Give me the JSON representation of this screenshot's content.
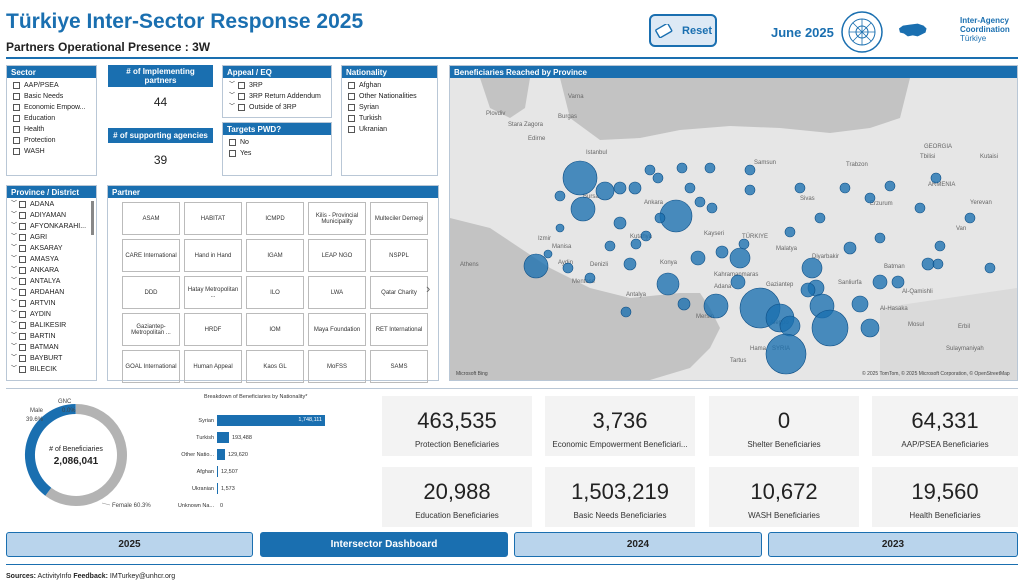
{
  "header": {
    "title": "Türkiye Inter-Sector Response 2025",
    "subtitle": "Partners Operational Presence : 3W",
    "reset_label": "Reset",
    "date": "June 2025",
    "iac_text": [
      "Inter-Agency",
      "Coordination",
      "Türkiye"
    ]
  },
  "sector": {
    "title": "Sector",
    "items": [
      "AAP/PSEA",
      "Basic Needs",
      "Economic Empow...",
      "Education",
      "Health",
      "Protection",
      "WASH"
    ]
  },
  "kpis": {
    "implementing_label": "# of Implementing partners",
    "implementing_value": "44",
    "supporting_label": "# of supporting agencies",
    "supporting_value": "39"
  },
  "appeal": {
    "title": "Appeal / EQ",
    "items": [
      "3RP",
      "3RP Return Addendum",
      "Outside of 3RP"
    ]
  },
  "pwd": {
    "title": "Targets PWD?",
    "items": [
      "No",
      "Yes"
    ]
  },
  "nationality": {
    "title": "Nationality",
    "items": [
      "Afghan",
      "Other Nationalities",
      "Syrian",
      "Turkish",
      "Ukranian"
    ]
  },
  "province": {
    "title": "Province / District",
    "items": [
      "ADANA",
      "ADIYAMAN",
      "AFYONKARAHI...",
      "AGRI",
      "AKSARAY",
      "AMASYA",
      "ANKARA",
      "ANTALYA",
      "ARDAHAN",
      "ARTVIN",
      "AYDIN",
      "BALIKESIR",
      "BARTIN",
      "BATMAN",
      "BAYBURT",
      "BILECIK"
    ]
  },
  "partner": {
    "title": "Partner",
    "items": [
      "ASAM",
      "HABITAT",
      "ICMPD",
      "Kilis - Provincial Municipality",
      "Multeciler Dernegi",
      "CARE International",
      "Hand in Hand",
      "IGAM",
      "LEAP NGO",
      "NSPPL",
      "DDD",
      "Hatay Metropolitan ...",
      "ILO",
      "LWA",
      "Qatar Charity",
      "Gaziantep-Metropolitan ...",
      "HRDF",
      "IOM",
      "Maya Foundation",
      "RET International",
      "GOAL International",
      "Human Appeal",
      "Kaos GL",
      "MoFSS",
      "SAMS"
    ],
    "next_arrow": "›"
  },
  "map": {
    "title": "Beneficiaries Reached by Province",
    "labels": [
      {
        "t": "Varna"
      },
      {
        "t": "Burgas"
      },
      {
        "t": "Plovdiv"
      },
      {
        "t": "Edirne"
      },
      {
        "t": "Stara Zagora"
      },
      {
        "t": "Istanbul"
      },
      {
        "t": "Bursa"
      },
      {
        "t": "Izmir"
      },
      {
        "t": "Manisa"
      },
      {
        "t": "Aydin"
      },
      {
        "t": "Denizli"
      },
      {
        "t": "Mentese"
      },
      {
        "t": "Antalya"
      },
      {
        "t": "Konya"
      },
      {
        "t": "Ankara"
      },
      {
        "t": "Kayseri"
      },
      {
        "t": "Adana"
      },
      {
        "t": "Mersin"
      },
      {
        "t": "Gaziantep"
      },
      {
        "t": "Aleppo"
      },
      {
        "t": "Hama"
      },
      {
        "t": "SYRIA"
      },
      {
        "t": "Tartus"
      },
      {
        "t": "Malatya"
      },
      {
        "t": "Diyarbakir"
      },
      {
        "t": "Batman"
      },
      {
        "t": "Sanliurfa"
      },
      {
        "t": "Mosul"
      },
      {
        "t": "Erbil"
      },
      {
        "t": "Van"
      },
      {
        "t": "Erzurum"
      },
      {
        "t": "Sivas"
      },
      {
        "t": "Trabzon"
      },
      {
        "t": "Samsun"
      },
      {
        "t": "Kutahya"
      },
      {
        "t": "TÜRKIYE"
      },
      {
        "t": "Athens"
      },
      {
        "t": "Sulaymaniyah"
      },
      {
        "t": "Tbilisi"
      },
      {
        "t": "ARMENIA"
      },
      {
        "t": "Yerevan"
      },
      {
        "t": "GEORGIA"
      },
      {
        "t": "Kutaisi"
      },
      {
        "t": "Al-Qamishli"
      },
      {
        "t": "Al-Hasaka"
      },
      {
        "t": "Kahramanmaras"
      }
    ],
    "attribution": "© 2025 TomTom, © 2025 Microsoft Corporation, © OpenStreetMap",
    "brand": "Microsoft Bing"
  },
  "donut": {
    "center_label": "# of Beneficiaries",
    "center_value": "2,086,041",
    "male_label": "Male",
    "male_pct": "39.6%",
    "gnc_label": "GNC",
    "gnc_pct": "0.0%",
    "female_label": "Female 60.3%",
    "colors": {
      "female": "#b3b3b3",
      "male": "#1a6fb0"
    }
  },
  "nat_chart": {
    "title": "Breakdown of Beneficiaries by Nationality*",
    "rows": [
      {
        "label": "Syrian",
        "value": 1748111,
        "display": "1,748,111"
      },
      {
        "label": "Turkish",
        "value": 193488,
        "display": "193,488"
      },
      {
        "label": "Other Natio...",
        "value": 129620,
        "display": "129,620"
      },
      {
        "label": "Afghan",
        "value": 12507,
        "display": "12,507"
      },
      {
        "label": "Ukranian",
        "value": 1573,
        "display": "1,573"
      },
      {
        "label": "Unknown Na...",
        "value": 0,
        "display": "0"
      }
    ]
  },
  "cards": [
    {
      "value": "463,535",
      "label": "Protection Beneficiaries"
    },
    {
      "value": "3,736",
      "label": "Economic Empowerment Beneficiari..."
    },
    {
      "value": "0",
      "label": "Shelter Beneficiaries"
    },
    {
      "value": "64,331",
      "label": "AAP/PSEA Beneficiaries"
    },
    {
      "value": "20,988",
      "label": "Education Beneficiaries"
    },
    {
      "value": "1,503,219",
      "label": "Basic Needs Beneficiaries"
    },
    {
      "value": "10,672",
      "label": "WASH Beneficiaries"
    },
    {
      "value": "19,560",
      "label": "Health Beneficiaries"
    }
  ],
  "tabs": [
    "2025",
    "Intersector Dashboard",
    "2024",
    "2023"
  ],
  "footer": {
    "sources_label": "Sources:",
    "sources": "ActivityInfo",
    "feedback_label": "Feedback:",
    "feedback": "IMTurkey@unhcr.org"
  }
}
